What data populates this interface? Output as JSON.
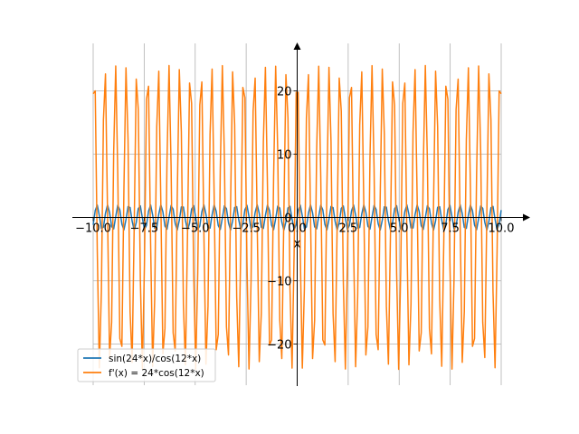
{
  "chart_data": {
    "type": "line",
    "title": "",
    "xlabel": "x",
    "ylabel": "",
    "xlim": [
      -10.0,
      10.0
    ],
    "ylim": [
      -26.5,
      27.5
    ],
    "grid": true,
    "legend_position": "lower-left",
    "x_ticks": [
      -10.0,
      -7.5,
      -5.0,
      -2.5,
      0.0,
      2.5,
      5.0,
      7.5,
      10.0
    ],
    "x_tick_labels": [
      "−10.0",
      "−7.5",
      "−5.0",
      "−2.5",
      "0.0",
      "2.5",
      "5.0",
      "7.5",
      "10.0"
    ],
    "y_ticks": [
      -20,
      -10,
      0,
      10,
      20
    ],
    "y_tick_labels": [
      "−20",
      "−10",
      "0",
      "10",
      "20"
    ],
    "series": [
      {
        "name": "sin(24*x)/cos(12*x)",
        "color": "#1f77b4",
        "expression": "sin(24*x)/cos(12*x)",
        "samples": 200
      },
      {
        "name": "f'(x) = 24*cos(12*x)",
        "color": "#ff7f0e",
        "expression": "24*cos(12*x)",
        "samples": 200
      }
    ]
  }
}
